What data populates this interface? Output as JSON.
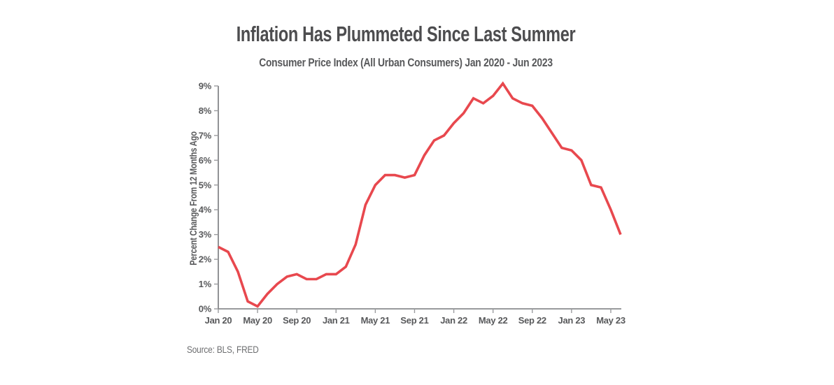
{
  "chart_data": {
    "type": "line",
    "title": "Inflation Has Plummeted Since Last Summer",
    "subtitle": "Consumer Price Index (All Urban Consumers) Jan 2020 - Jun 2023",
    "ylabel": "Percent Change From 12 Months Ago",
    "source": "Source: BLS, FRED",
    "ylim": [
      0,
      9
    ],
    "ytick_step": 1,
    "ytick_suffix": "%",
    "grid": false,
    "legend": null,
    "line_color": "#e8484e",
    "axis_color": "#77787b",
    "tick_color": "#9a9b9e",
    "x": [
      "Jan 20",
      "Feb 20",
      "Mar 20",
      "Apr 20",
      "May 20",
      "Jun 20",
      "Jul 20",
      "Aug 20",
      "Sep 20",
      "Oct 20",
      "Nov 20",
      "Dec 20",
      "Jan 21",
      "Feb 21",
      "Mar 21",
      "Apr 21",
      "May 21",
      "Jun 21",
      "Jul 21",
      "Aug 21",
      "Sep 21",
      "Oct 21",
      "Nov 21",
      "Dec 21",
      "Jan 22",
      "Feb 22",
      "Mar 22",
      "Apr 22",
      "May 22",
      "Jun 22",
      "Jul 22",
      "Aug 22",
      "Sep 22",
      "Oct 22",
      "Nov 22",
      "Dec 22",
      "Jan 23",
      "Feb 23",
      "Mar 23",
      "Apr 23",
      "May 23",
      "Jun 23"
    ],
    "values": [
      2.5,
      2.3,
      1.5,
      0.3,
      0.1,
      0.6,
      1.0,
      1.3,
      1.4,
      1.2,
      1.2,
      1.4,
      1.4,
      1.7,
      2.6,
      4.2,
      5.0,
      5.4,
      5.4,
      5.3,
      5.4,
      6.2,
      6.8,
      7.0,
      7.5,
      7.9,
      8.5,
      8.3,
      8.6,
      9.1,
      8.5,
      8.3,
      8.2,
      7.7,
      7.1,
      6.5,
      6.4,
      6.0,
      5.0,
      4.9,
      4.0,
      3.0
    ],
    "xtick_labels": [
      "Jan 20",
      "May 20",
      "Sep 20",
      "Jan 21",
      "May 21",
      "Sep 21",
      "Jan 22",
      "May 22",
      "Sep 22",
      "Jan 23",
      "May 23"
    ],
    "xtick_every": 4
  }
}
